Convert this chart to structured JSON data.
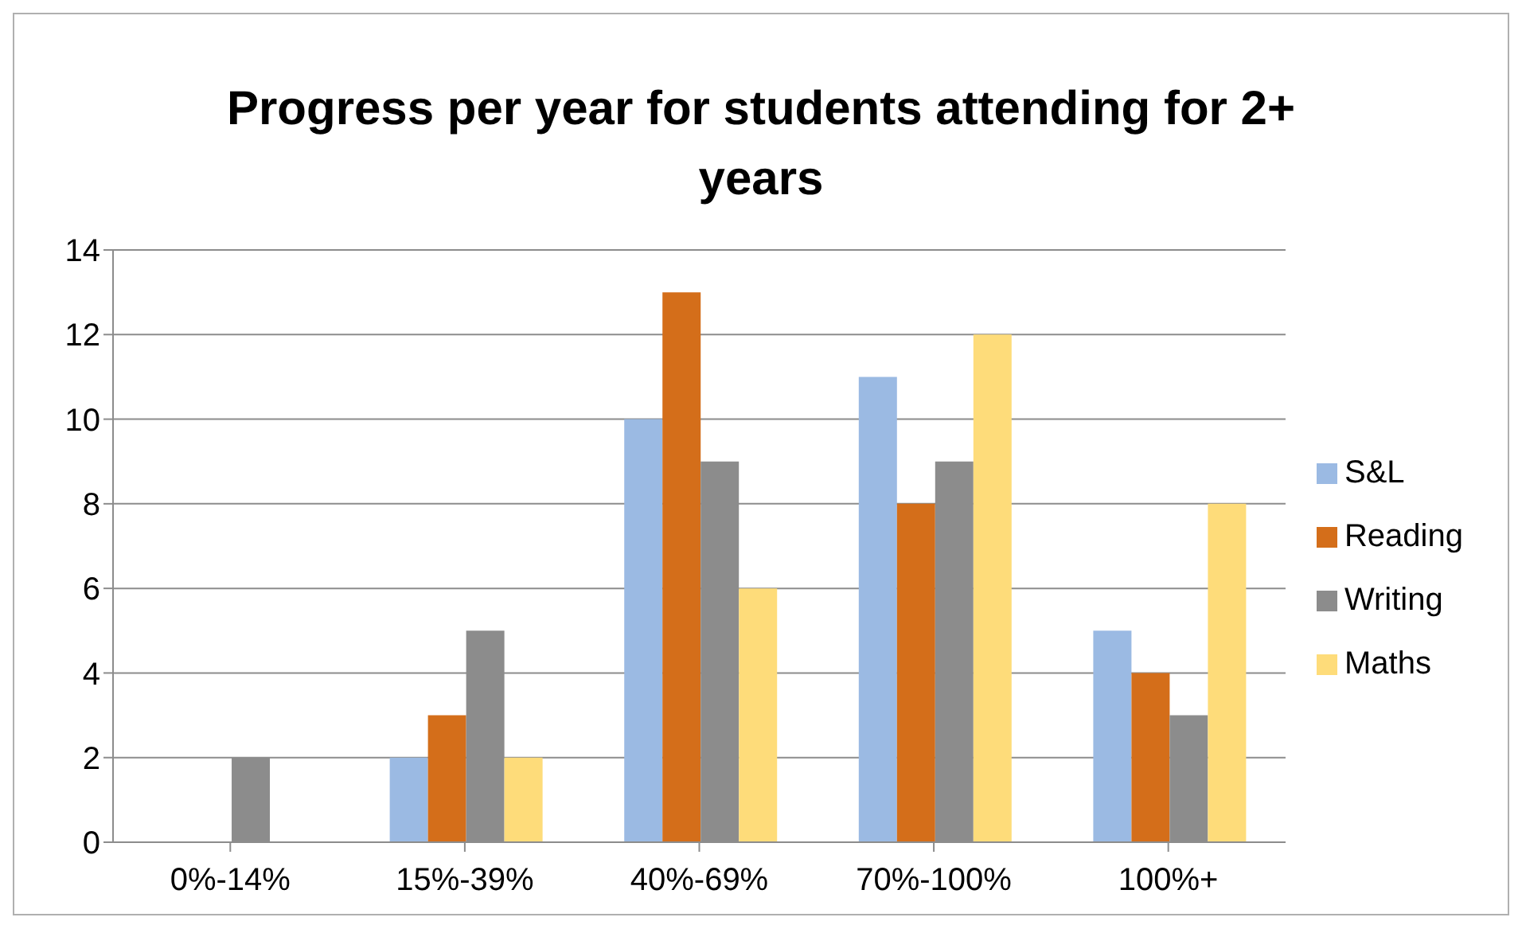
{
  "chart_data": {
    "type": "bar",
    "title": "Progress per year for students attending for 2+ years",
    "categories": [
      "0%-14%",
      "15%-39%",
      "40%-69%",
      "70%-100%",
      "100%+"
    ],
    "series": [
      {
        "name": "S&L",
        "color": "#9bbae3",
        "values": [
          0,
          2,
          10,
          11,
          5
        ]
      },
      {
        "name": "Reading",
        "color": "#d46e1a",
        "values": [
          0,
          3,
          13,
          8,
          4
        ]
      },
      {
        "name": "Writing",
        "color": "#8c8c8c",
        "values": [
          2,
          5,
          9,
          9,
          3
        ]
      },
      {
        "name": "Maths",
        "color": "#fedc7a",
        "values": [
          0,
          2,
          6,
          12,
          8
        ]
      }
    ],
    "ylim": [
      0,
      14
    ],
    "yticks": [
      0,
      2,
      4,
      6,
      8,
      10,
      12,
      14
    ],
    "grid": "y",
    "legend": "right"
  }
}
